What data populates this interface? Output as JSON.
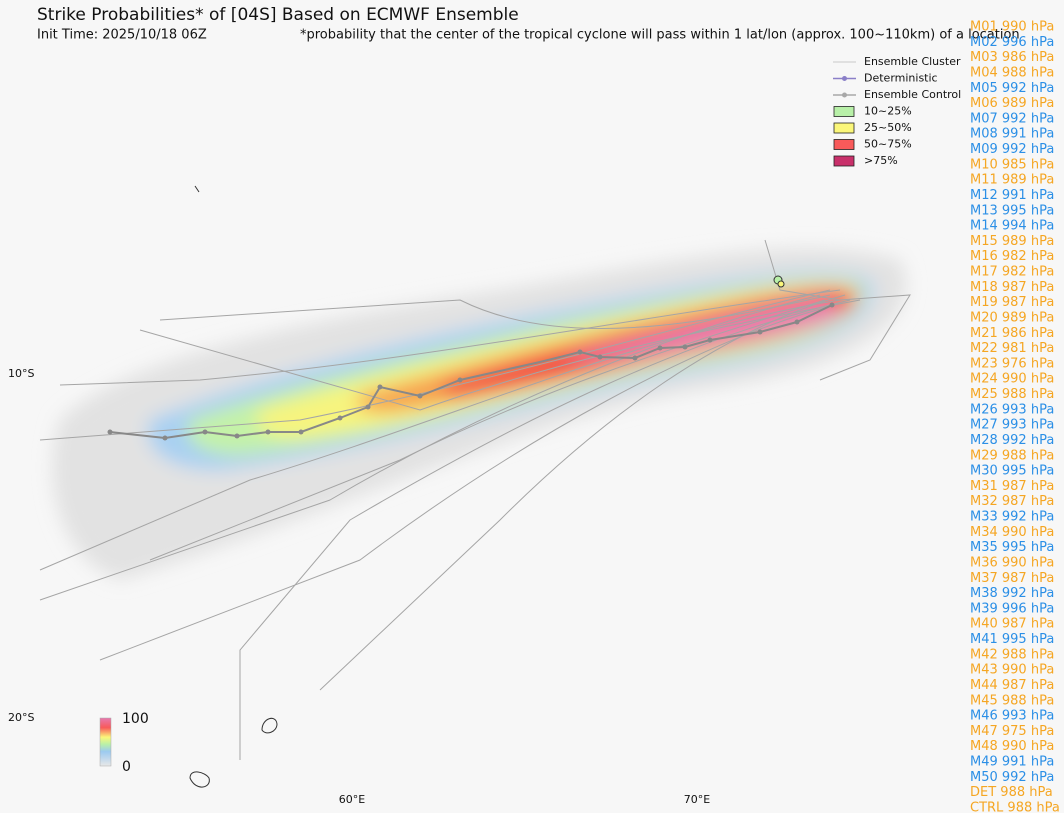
{
  "header": {
    "title": "Strike Probabilities* of [04S] Based on ECMWF Ensemble",
    "init_time": "Init Time: 2025/10/18 06Z",
    "note": "*probability that the center of the tropical cyclone will pass within 1 lat/lon (approx. 100~110km) of a location"
  },
  "legend": [
    {
      "label": "Ensemble Cluster",
      "kind": "line",
      "color": "#c8c8c8"
    },
    {
      "label": "Deterministic",
      "kind": "marker-line",
      "color": "#8a7fc8"
    },
    {
      "label": "Ensemble Control",
      "kind": "marker-line",
      "color": "#a8a8a8"
    },
    {
      "label": "10~25%",
      "kind": "box",
      "color": "#b8f0a8"
    },
    {
      "label": "25~50%",
      "kind": "box",
      "color": "#fbf77a"
    },
    {
      "label": "50~75%",
      "kind": "box",
      "color": "#f85a5a"
    },
    {
      "label": ">75%",
      "kind": "box",
      "color": "#c8306a"
    }
  ],
  "axes": {
    "lat": [
      "10°S",
      "20°S"
    ],
    "lon": [
      "60°E",
      "70°E"
    ]
  },
  "colorbar": {
    "max": "100",
    "min": "0"
  },
  "members": [
    {
      "label": "M01 990 hPa",
      "color": "#f5a623"
    },
    {
      "label": "M02 996 hPa",
      "color": "#2b8fe6"
    },
    {
      "label": "M03 986 hPa",
      "color": "#f5a623"
    },
    {
      "label": "M04 988 hPa",
      "color": "#f5a623"
    },
    {
      "label": "M05 992 hPa",
      "color": "#2b8fe6"
    },
    {
      "label": "M06 989 hPa",
      "color": "#f5a623"
    },
    {
      "label": "M07 992 hPa",
      "color": "#2b8fe6"
    },
    {
      "label": "M08 991 hPa",
      "color": "#2b8fe6"
    },
    {
      "label": "M09 992 hPa",
      "color": "#2b8fe6"
    },
    {
      "label": "M10 985 hPa",
      "color": "#f5a623"
    },
    {
      "label": "M11 989 hPa",
      "color": "#f5a623"
    },
    {
      "label": "M12 991 hPa",
      "color": "#2b8fe6"
    },
    {
      "label": "M13 995 hPa",
      "color": "#2b8fe6"
    },
    {
      "label": "M14 994 hPa",
      "color": "#2b8fe6"
    },
    {
      "label": "M15 989 hPa",
      "color": "#f5a623"
    },
    {
      "label": "M16 982 hPa",
      "color": "#f5a623"
    },
    {
      "label": "M17 982 hPa",
      "color": "#f5a623"
    },
    {
      "label": "M18 987 hPa",
      "color": "#f5a623"
    },
    {
      "label": "M19 987 hPa",
      "color": "#f5a623"
    },
    {
      "label": "M20 989 hPa",
      "color": "#f5a623"
    },
    {
      "label": "M21 986 hPa",
      "color": "#f5a623"
    },
    {
      "label": "M22 981 hPa",
      "color": "#f5a623"
    },
    {
      "label": "M23 976 hPa",
      "color": "#f5a623"
    },
    {
      "label": "M24 990 hPa",
      "color": "#f5a623"
    },
    {
      "label": "M25 988 hPa",
      "color": "#f5a623"
    },
    {
      "label": "M26 993 hPa",
      "color": "#2b8fe6"
    },
    {
      "label": "M27 993 hPa",
      "color": "#2b8fe6"
    },
    {
      "label": "M28 992 hPa",
      "color": "#2b8fe6"
    },
    {
      "label": "M29 988 hPa",
      "color": "#f5a623"
    },
    {
      "label": "M30 995 hPa",
      "color": "#2b8fe6"
    },
    {
      "label": "M31 987 hPa",
      "color": "#f5a623"
    },
    {
      "label": "M32 987 hPa",
      "color": "#f5a623"
    },
    {
      "label": "M33 992 hPa",
      "color": "#2b8fe6"
    },
    {
      "label": "M34 990 hPa",
      "color": "#f5a623"
    },
    {
      "label": "M35 995 hPa",
      "color": "#2b8fe6"
    },
    {
      "label": "M36 990 hPa",
      "color": "#f5a623"
    },
    {
      "label": "M37 987 hPa",
      "color": "#f5a623"
    },
    {
      "label": "M38 992 hPa",
      "color": "#2b8fe6"
    },
    {
      "label": "M39 996 hPa",
      "color": "#2b8fe6"
    },
    {
      "label": "M40 987 hPa",
      "color": "#f5a623"
    },
    {
      "label": "M41 995 hPa",
      "color": "#2b8fe6"
    },
    {
      "label": "M42 988 hPa",
      "color": "#f5a623"
    },
    {
      "label": "M43 990 hPa",
      "color": "#f5a623"
    },
    {
      "label": "M44 987 hPa",
      "color": "#f5a623"
    },
    {
      "label": "M45 988 hPa",
      "color": "#f5a623"
    },
    {
      "label": "M46 993 hPa",
      "color": "#2b8fe6"
    },
    {
      "label": "M47 975 hPa",
      "color": "#f5a623"
    },
    {
      "label": "M48 990 hPa",
      "color": "#f5a623"
    },
    {
      "label": "M49 991 hPa",
      "color": "#2b8fe6"
    },
    {
      "label": "M50 992 hPa",
      "color": "#2b8fe6"
    },
    {
      "label": "DET 988 hPa",
      "color": "#f5a623"
    },
    {
      "label": "CTRL 988 hPa",
      "color": "#f5a623"
    }
  ]
}
